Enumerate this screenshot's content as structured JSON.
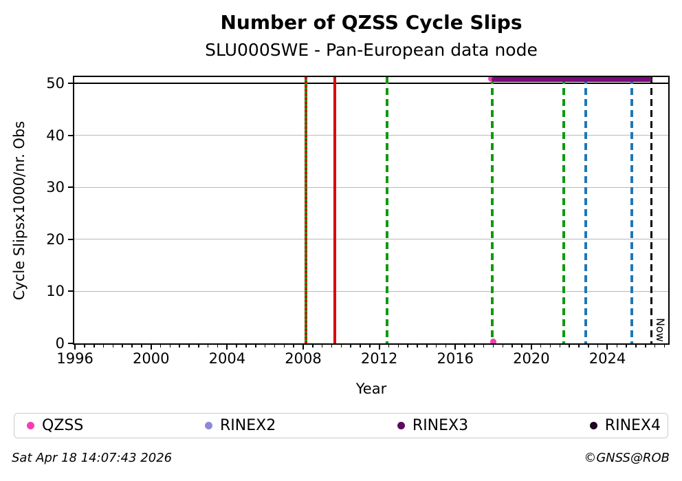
{
  "footer": {
    "timestamp": "Sat Apr 18 14:07:43 2026",
    "credit": "©GNSS@ROB"
  },
  "chart_data": {
    "type": "line",
    "title": "Number of QZSS Cycle Slips",
    "subtitle": "SLU000SWE - Pan-European data node",
    "xlabel": "Year",
    "ylabel": "Cycle Slipsx1000/nr. Obs",
    "xlim": [
      1995.96,
      2027.2
    ],
    "ylim": [
      0,
      51.2
    ],
    "xticks": [
      1996,
      2000,
      2004,
      2008,
      2012,
      2016,
      2020,
      2024
    ],
    "x_minor_step": 0.5,
    "yticks": [
      0,
      10,
      20,
      30,
      40,
      50
    ],
    "grid": {
      "horizontal": true,
      "color": "#b8b8b8"
    },
    "threshold_line": {
      "y": 50,
      "color": "#000000"
    },
    "event_lines": [
      {
        "x": 2008.15,
        "style": "solid",
        "color": "#0f9a0f",
        "overlay": {
          "style": "dashed-small",
          "color": "#dd0000"
        }
      },
      {
        "x": 2009.65,
        "style": "solid",
        "color": "#dd0000"
      },
      {
        "x": 2012.4,
        "style": "dashed",
        "color": "#0f9a0f"
      },
      {
        "x": 2017.95,
        "style": "dashed",
        "color": "#0f9a0f"
      },
      {
        "x": 2021.7,
        "style": "dashed",
        "color": "#0f9a0f"
      },
      {
        "x": 2022.85,
        "style": "dashed",
        "color": "#1f77b4"
      },
      {
        "x": 2025.3,
        "style": "dashed",
        "color": "#1f77b4"
      },
      {
        "x": 2026.3,
        "style": "dashed",
        "color": "#000000",
        "label": "Now"
      }
    ],
    "series": [
      {
        "name": "QZSS",
        "color": "#f43fb4",
        "marker": "point",
        "points": [
          [
            2017.9,
            50.9
          ],
          [
            2018.0,
            0.35
          ]
        ]
      },
      {
        "name": "RINEX3",
        "color": "#7a0a7a",
        "marker": "thick-line",
        "y": 50.7,
        "x_start": 2017.9,
        "x_end": 2026.35
      }
    ],
    "legend": [
      {
        "label": "QZSS",
        "color": "#f43fb4"
      },
      {
        "label": "RINEX2",
        "color": "#8d89d6"
      },
      {
        "label": "RINEX3",
        "color": "#5c095c"
      },
      {
        "label": "RINEX4",
        "color": "#1d0721"
      }
    ]
  }
}
